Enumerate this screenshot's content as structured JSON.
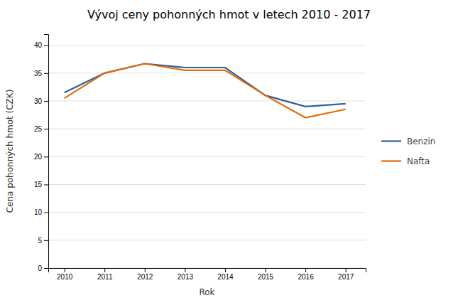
{
  "chart_data": {
    "type": "line",
    "title": "Vývoj ceny pohonných hmot v letech 2010 - 2017",
    "x_label": "Rok",
    "y_label": "Cena pohonných hmot (CZK)",
    "x": [
      2010,
      2011,
      2012,
      2013,
      2014,
      2015,
      2016,
      2017
    ],
    "series": [
      {
        "name": "Benzin",
        "color": "#2E5FA3",
        "values": [
          31.5,
          35.0,
          36.7,
          36.0,
          36.0,
          31.0,
          29.0,
          29.5
        ]
      },
      {
        "name": "Nafta",
        "color": "#E36C09",
        "values": [
          30.5,
          35.0,
          36.7,
          35.5,
          35.5,
          31.0,
          27.0,
          28.5
        ]
      }
    ],
    "xlim": [
      2009.6,
      2017.5
    ],
    "xticks": [
      2010,
      2011,
      2012,
      2013,
      2014,
      2015,
      2016,
      2017
    ],
    "ylim": [
      0,
      42
    ],
    "yticks": [
      0,
      5,
      10,
      15,
      20,
      25,
      30,
      35,
      40
    ],
    "grid": true,
    "legend": "right"
  }
}
